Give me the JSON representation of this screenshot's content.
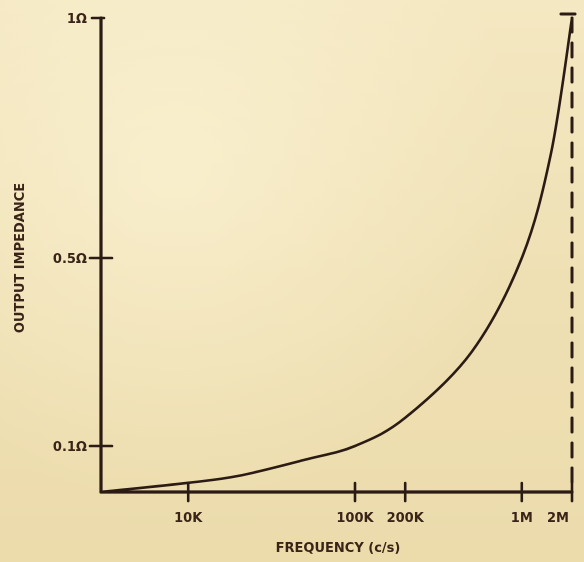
{
  "chart_data": {
    "type": "line",
    "title": "",
    "xlabel": "FREQUENCY (c/s)",
    "ylabel": "OUTPUT IMPEDANCE",
    "x_scale": "log",
    "y_scale": "nonlinear",
    "x_ticks": [
      {
        "value": 10000,
        "label": "10K"
      },
      {
        "value": 100000,
        "label": "100K"
      },
      {
        "value": 200000,
        "label": "200K"
      },
      {
        "value": 1000000,
        "label": "1M"
      },
      {
        "value": 2000000,
        "label": "2M"
      }
    ],
    "y_ticks": [
      {
        "value": 0.1,
        "label": "0.1Ω"
      },
      {
        "value": 0.5,
        "label": "0.5Ω"
      },
      {
        "value": 1,
        "label": "1Ω"
      }
    ],
    "xlim": [
      3000,
      2000000
    ],
    "ylim": [
      0,
      1
    ],
    "grid": false,
    "legend": "none",
    "reference_line": {
      "x": 2000000,
      "style": "dashed"
    },
    "series": [
      {
        "x": [
          3000,
          10000,
          20000,
          50000,
          100000,
          200000,
          500000,
          1000000,
          1500000,
          2000000
        ],
        "y": [
          0.0,
          0.02,
          0.035,
          0.07,
          0.1,
          0.16,
          0.3,
          0.5,
          0.72,
          1.0
        ]
      }
    ],
    "colors": {
      "ink": "#2b1b14",
      "paper": "#f0e3b9"
    }
  }
}
